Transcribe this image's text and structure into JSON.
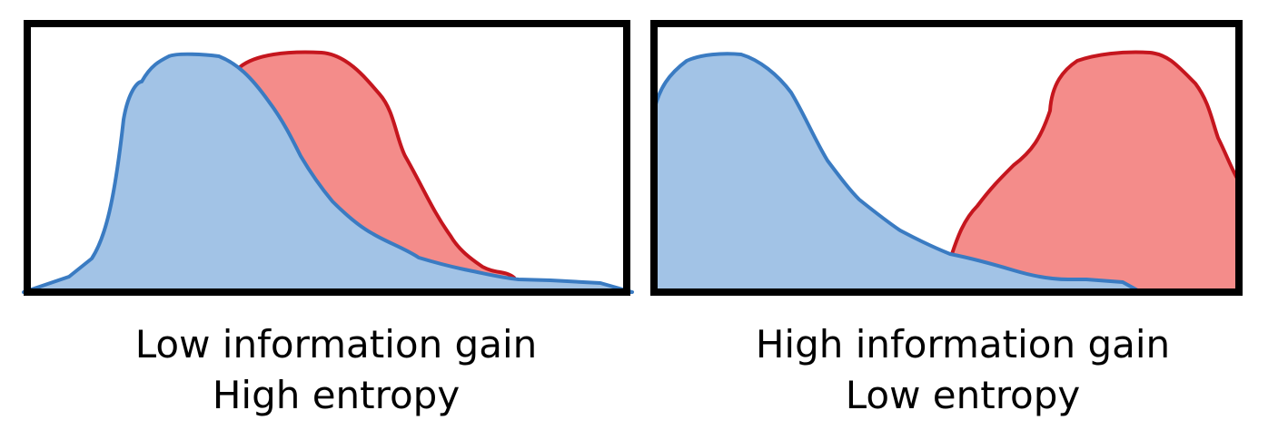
{
  "colors": {
    "blue_fill": "#a2c3e6",
    "blue_stroke": "#3a7bc2",
    "red_fill": "#f48c8a",
    "red_stroke": "#c5161e",
    "frame": "#000000",
    "background": "#ffffff"
  },
  "panels": [
    {
      "id": "left",
      "caption_line1": "Low information gain",
      "caption_line2": "High entropy",
      "overlap": "high"
    },
    {
      "id": "right",
      "caption_line1": "High information gain",
      "caption_line2": "Low entropy",
      "overlap": "low"
    }
  ]
}
